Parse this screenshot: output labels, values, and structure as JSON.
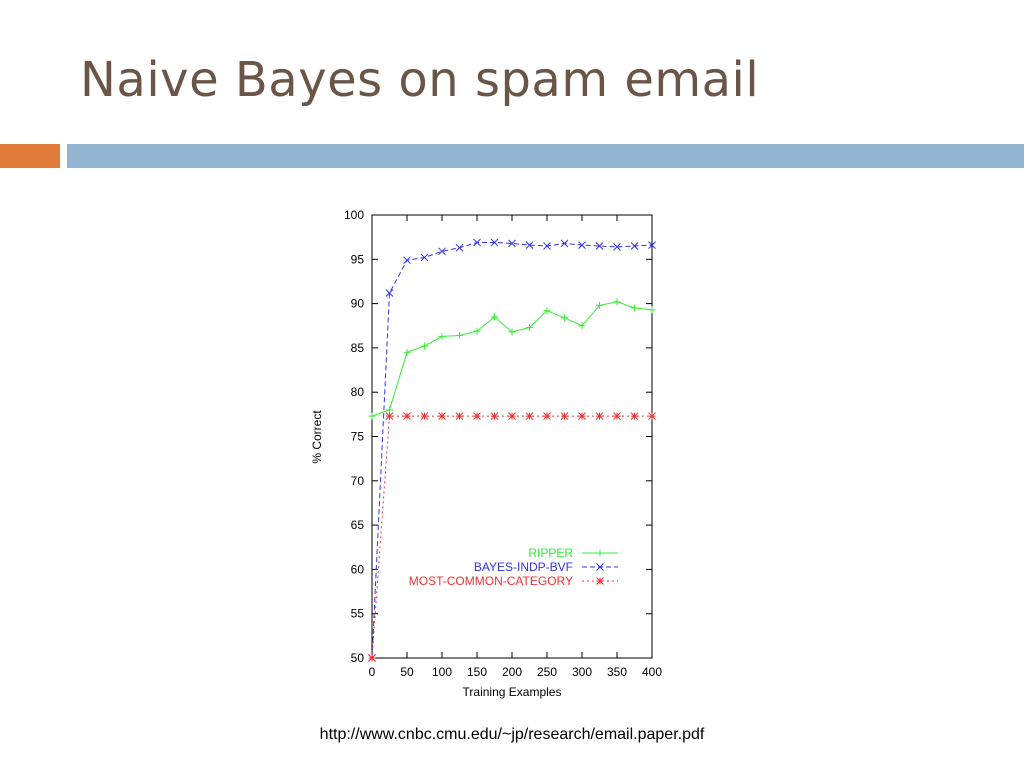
{
  "slide": {
    "title": "Naive Bayes on spam email",
    "source_url": "http://www.cnbc.cmu.edu/~jp/research/email.paper.pdf",
    "accent_colors": {
      "orange": "#e07b39",
      "blue": "#93b5d2"
    }
  },
  "chart_data": {
    "type": "line",
    "title": "",
    "xlabel": "Training Examples",
    "ylabel": "% Correct",
    "xlim": [
      0,
      400
    ],
    "ylim": [
      50,
      100
    ],
    "xticks": [
      0,
      50,
      100,
      150,
      200,
      250,
      300,
      350,
      400
    ],
    "yticks": [
      50,
      55,
      60,
      65,
      70,
      75,
      80,
      85,
      90,
      95,
      100
    ],
    "grid": false,
    "legend_position": "lower-right",
    "series": [
      {
        "name": "RIPPER",
        "color": "#33ee33",
        "dash": "solid",
        "marker": "plus",
        "x": [
          0,
          25,
          50,
          75,
          100,
          125,
          150,
          175,
          200,
          225,
          250,
          275,
          300,
          325,
          350,
          375,
          400
        ],
        "y": [
          77.3,
          78.0,
          84.5,
          85.2,
          86.3,
          86.4,
          86.9,
          88.5,
          86.8,
          87.3,
          89.2,
          88.4,
          87.5,
          89.8,
          90.2,
          89.5,
          89.3
        ]
      },
      {
        "name": "BAYES-INDP-BVF",
        "color": "#3333ee",
        "dash": "dashed",
        "marker": "x",
        "x": [
          0,
          25,
          50,
          75,
          100,
          125,
          150,
          175,
          200,
          225,
          250,
          275,
          300,
          325,
          350,
          375,
          400
        ],
        "y": [
          50.0,
          91.2,
          94.9,
          95.2,
          95.9,
          96.3,
          96.9,
          96.9,
          96.8,
          96.6,
          96.5,
          96.8,
          96.6,
          96.5,
          96.4,
          96.5,
          96.6
        ]
      },
      {
        "name": "MOST-COMMON-CATEGORY",
        "color": "#ee3333",
        "dash": "dotted",
        "marker": "star",
        "x": [
          0,
          25,
          50,
          75,
          100,
          125,
          150,
          175,
          200,
          225,
          250,
          275,
          300,
          325,
          350,
          375,
          400
        ],
        "y": [
          50.0,
          77.3,
          77.3,
          77.3,
          77.3,
          77.3,
          77.3,
          77.3,
          77.3,
          77.3,
          77.3,
          77.3,
          77.3,
          77.3,
          77.3,
          77.3,
          77.3
        ]
      }
    ]
  }
}
